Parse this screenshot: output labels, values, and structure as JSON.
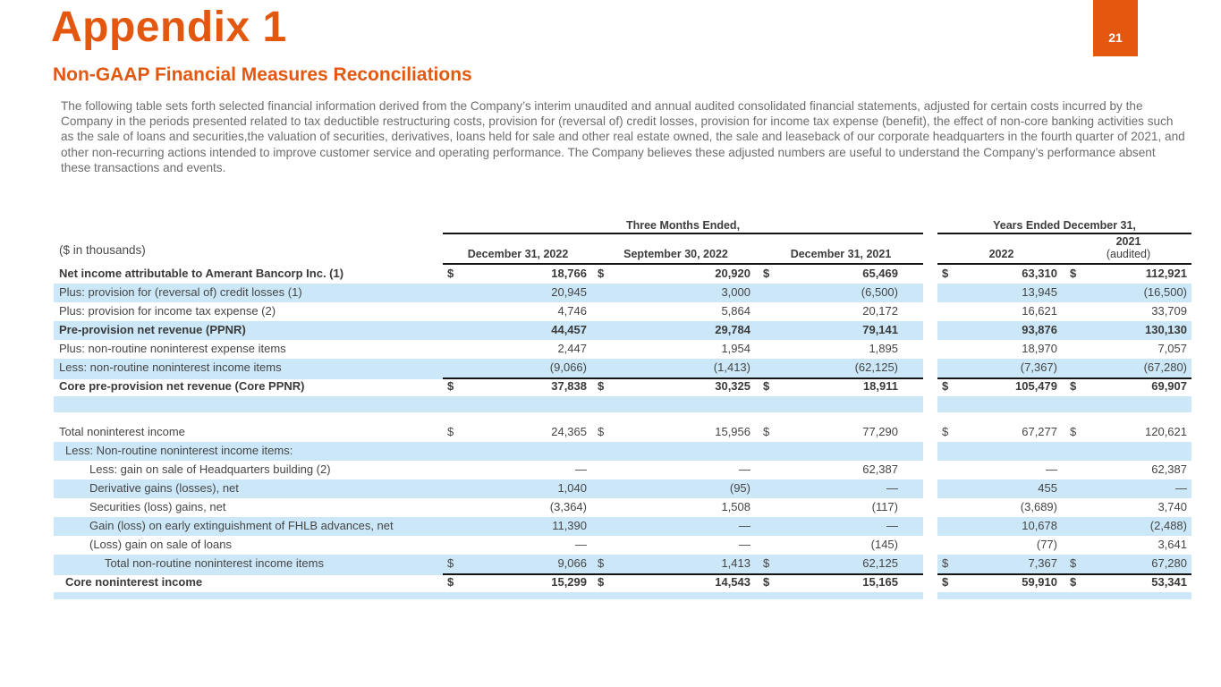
{
  "page": {
    "number": "21",
    "title": "Appendix 1",
    "subtitle": "Non-GAAP Financial Measures Reconciliations",
    "intro": "The following table sets forth selected financial information derived from the Company’s interim unaudited and annual audited consolidated financial statements, adjusted for certain costs incurred by the Company in the periods presented related to tax deductible restructuring costs, provision for (reversal of) credit losses, provision for income tax expense (benefit), the effect of non-core banking activities such as the sale of loans and securities,the valuation of securities, derivatives, loans held for sale and other real estate owned, the sale and leaseback of our corporate headquarters in the fourth quarter of 2021, and other non-recurring actions intended to improve customer service and operating performance. The Company believes these adjusted numbers are useful to understand the Company’s performance absent these transactions and events."
  },
  "colors": {
    "accent_orange": "#e4570f",
    "band_blue": "#cce8f8",
    "rule_black": "#141414",
    "body_gray": "#6d6d6d"
  },
  "table": {
    "units_label": "($ in thousands)",
    "group_headers": [
      "Three Months Ended,",
      "Years Ended December 31,"
    ],
    "columns": [
      "December 31, 2022",
      "September 30, 2022",
      "December 31, 2021",
      "2022",
      "2021",
      "(audited)"
    ],
    "rows": [
      {
        "label": "Net income attributable to Amerant Bancorp Inc. (1)",
        "bold": true,
        "shade": false,
        "indent": 0,
        "dollars": true,
        "rule": "none",
        "values": [
          "18,766",
          "20,920",
          "65,469",
          "63,310",
          "112,921"
        ]
      },
      {
        "label": "Plus: provision for (reversal of) credit losses (1)",
        "bold": false,
        "shade": true,
        "indent": 0,
        "dollars": false,
        "rule": "none",
        "values": [
          "20,945",
          "3,000",
          "(6,500)",
          "13,945",
          "(16,500)"
        ]
      },
      {
        "label": "Plus: provision for income tax expense (2)",
        "bold": false,
        "shade": false,
        "indent": 0,
        "dollars": false,
        "rule": "single",
        "values": [
          "4,746",
          "5,864",
          "20,172",
          "16,621",
          "33,709"
        ]
      },
      {
        "label": "Pre-provision net revenue (PPNR)",
        "bold": true,
        "shade": true,
        "indent": 0,
        "dollars": false,
        "rule": "none",
        "values": [
          "44,457",
          "29,784",
          "79,141",
          "93,876",
          "130,130"
        ]
      },
      {
        "label": "Plus: non-routine noninterest expense items",
        "bold": false,
        "shade": false,
        "indent": 0,
        "dollars": false,
        "rule": "none",
        "values": [
          "2,447",
          "1,954",
          "1,895",
          "18,970",
          "7,057"
        ]
      },
      {
        "label": "Less: non-routine noninterest income items",
        "bold": false,
        "shade": true,
        "indent": 0,
        "dollars": false,
        "rule": "single",
        "values": [
          "(9,066)",
          "(1,413)",
          "(62,125)",
          "(7,367)",
          "(67,280)"
        ]
      },
      {
        "label": "Core pre-provision net revenue (Core PPNR)",
        "bold": true,
        "shade": false,
        "indent": 0,
        "dollars": true,
        "rule": "double",
        "values": [
          "37,838",
          "30,325",
          "18,911",
          "105,479",
          "69,907"
        ]
      },
      {
        "type": "spacer",
        "shade": true,
        "height": 18
      },
      {
        "type": "spacer",
        "shade": false,
        "height": 12
      },
      {
        "label": "Total noninterest income",
        "bold": false,
        "shade": false,
        "indent": 0,
        "dollars": true,
        "rule": "single",
        "values": [
          "24,365",
          "15,956",
          "77,290",
          "67,277",
          "120,621"
        ]
      },
      {
        "label": "Less: Non-routine noninterest income items:",
        "bold": false,
        "shade": true,
        "indent": 1,
        "dollars": false,
        "rule": "none",
        "values": [
          "",
          "",
          "",
          "",
          ""
        ]
      },
      {
        "label": "Less: gain on sale of Headquarters building (2)",
        "bold": false,
        "shade": false,
        "indent": 2,
        "dollars": false,
        "rule": "none",
        "values": [
          "—",
          "—",
          "62,387",
          "—",
          "62,387"
        ]
      },
      {
        "label": "Derivative gains (losses), net",
        "bold": false,
        "shade": true,
        "indent": 2,
        "dollars": false,
        "rule": "none",
        "values": [
          "1,040",
          "(95)",
          "—",
          "455",
          "—"
        ]
      },
      {
        "label": "Securities (loss) gains, net",
        "bold": false,
        "shade": false,
        "indent": 2,
        "dollars": false,
        "rule": "none",
        "values": [
          "(3,364)",
          "1,508",
          "(117)",
          "(3,689)",
          "3,740"
        ]
      },
      {
        "label": "Gain (loss) on early extinguishment of FHLB advances, net",
        "bold": false,
        "shade": true,
        "indent": 2,
        "dollars": false,
        "rule": "none",
        "values": [
          "11,390",
          "—",
          "—",
          "10,678",
          "(2,488)"
        ]
      },
      {
        "label": "(Loss) gain on sale of loans",
        "bold": false,
        "shade": false,
        "indent": 2,
        "dollars": false,
        "rule": "single",
        "values": [
          "—",
          "—",
          "(145)",
          "(77)",
          "3,641"
        ]
      },
      {
        "label": "Total non-routine noninterest income items",
        "bold": false,
        "shade": true,
        "indent": 3,
        "dollars": true,
        "rule": "single",
        "values": [
          "9,066",
          "1,413",
          "62,125",
          "7,367",
          "67,280"
        ]
      },
      {
        "label": "Core noninterest income",
        "bold": true,
        "shade": false,
        "indent": 1,
        "dollars": true,
        "rule": "double",
        "values": [
          "15,299",
          "14,543",
          "15,165",
          "59,910",
          "53,341"
        ]
      },
      {
        "type": "spacer",
        "shade": true,
        "height": 8
      }
    ]
  }
}
